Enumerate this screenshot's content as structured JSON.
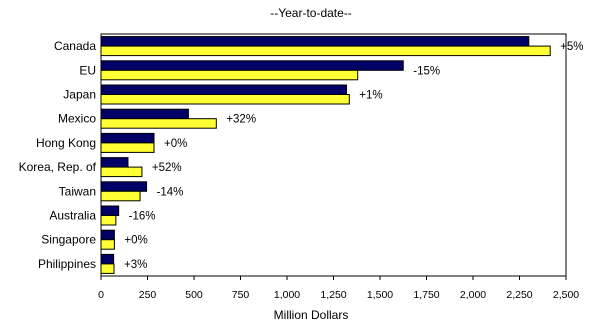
{
  "chart_data": {
    "type": "bar",
    "orientation": "horizontal",
    "title": "--Year-to-date--",
    "xlabel": "Million Dollars",
    "ylabel": "",
    "xlim": [
      0,
      2500
    ],
    "x_ticks": [
      0,
      250,
      500,
      750,
      1000,
      1250,
      1500,
      1750,
      2000,
      2250,
      2500
    ],
    "x_tick_labels": [
      "0",
      "250",
      "500",
      "750",
      "1,000",
      "1,250",
      "1,500",
      "1,750",
      "2,000",
      "2,250",
      "2,500"
    ],
    "grid": false,
    "legend": "none",
    "categories": [
      "Canada",
      "EU",
      "Japan",
      "Mexico",
      "Hong Kong",
      "Korea, Rep. of",
      "Taiwan",
      "Australia",
      "Singapore",
      "Philippines"
    ],
    "series": [
      {
        "color": "#000066",
        "values": [
          2300,
          1625,
          1320,
          470,
          285,
          145,
          245,
          95,
          72,
          68
        ]
      },
      {
        "color": "#ffff33",
        "values": [
          2415,
          1380,
          1335,
          620,
          285,
          220,
          210,
          80,
          72,
          70
        ]
      }
    ],
    "annotations": [
      "+5%",
      "-15%",
      "+1%",
      "+32%",
      "+0%",
      "+52%",
      "-14%",
      "-16%",
      "+0%",
      "+3%"
    ]
  }
}
